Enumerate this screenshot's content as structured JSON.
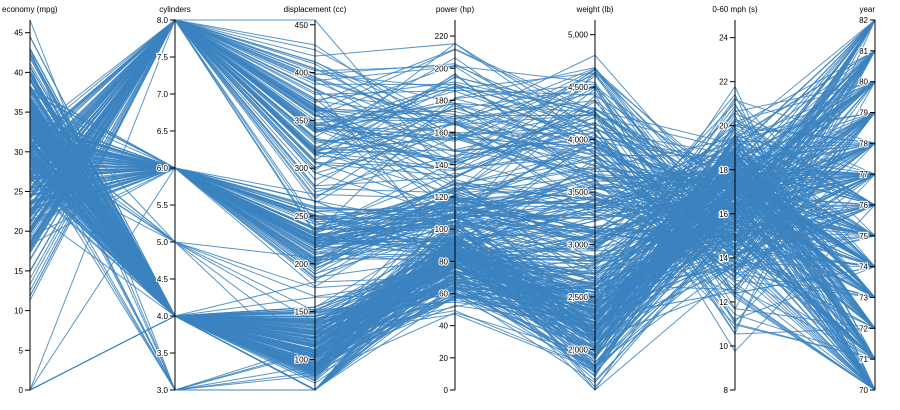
{
  "chart_data": {
    "type": "parallel-coordinates",
    "series_color": "#3b82c0",
    "record_count": 406,
    "dimensions": [
      {
        "key": "economy",
        "label": "economy (mpg)",
        "domain": [
          0,
          46.6
        ],
        "ticks": [
          0,
          5,
          10,
          15,
          20,
          25,
          30,
          35,
          40,
          45
        ],
        "tick_labels": [
          "0",
          "5",
          "10",
          "15",
          "20",
          "25",
          "30",
          "35",
          "40",
          "45"
        ]
      },
      {
        "key": "cylinders",
        "label": "cylinders",
        "domain": [
          3,
          8
        ],
        "ticks": [
          3,
          3.5,
          4,
          4.5,
          5,
          5.5,
          6,
          6.5,
          7,
          7.5,
          8
        ],
        "tick_labels": [
          "3.0",
          "3.5",
          "4.0",
          "4.5",
          "5.0",
          "5.5",
          "6.0",
          "6.5",
          "7.0",
          "7.5",
          "8.0"
        ]
      },
      {
        "key": "displacement",
        "label": "displacement (cc)",
        "domain": [
          68,
          455
        ],
        "ticks": [
          100,
          150,
          200,
          250,
          300,
          350,
          400,
          450
        ],
        "tick_labels": [
          "100",
          "150",
          "200",
          "250",
          "300",
          "350",
          "400",
          "450"
        ]
      },
      {
        "key": "power",
        "label": "power (hp)",
        "domain": [
          0,
          230
        ],
        "ticks": [
          0,
          20,
          40,
          60,
          80,
          100,
          120,
          140,
          160,
          180,
          200,
          220
        ],
        "tick_labels": [
          "0",
          "20",
          "40",
          "60",
          "80",
          "100",
          "120",
          "140",
          "160",
          "180",
          "200",
          "220"
        ]
      },
      {
        "key": "weight",
        "label": "weight (lb)",
        "domain": [
          1613,
          5140
        ],
        "ticks": [
          2000,
          2500,
          3000,
          3500,
          4000,
          4500,
          5000
        ],
        "tick_labels": [
          "2,000",
          "2,500",
          "3,000",
          "3,500",
          "4,000",
          "4,500",
          "5,000"
        ]
      },
      {
        "key": "accel",
        "label": "0-60 mph (s)",
        "domain": [
          8,
          24.8
        ],
        "ticks": [
          8,
          10,
          12,
          14,
          16,
          18,
          20,
          22,
          24
        ],
        "tick_labels": [
          "8",
          "10",
          "12",
          "14",
          "16",
          "18",
          "20",
          "22",
          "24"
        ]
      },
      {
        "key": "year",
        "label": "year",
        "domain": [
          70,
          82
        ],
        "ticks": [
          70,
          71,
          72,
          73,
          74,
          75,
          76,
          77,
          78,
          79,
          80,
          81,
          82
        ],
        "tick_labels": [
          "70",
          "71",
          "72",
          "73",
          "74",
          "75",
          "76",
          "77",
          "78",
          "79",
          "80",
          "81",
          "82"
        ]
      }
    ]
  }
}
